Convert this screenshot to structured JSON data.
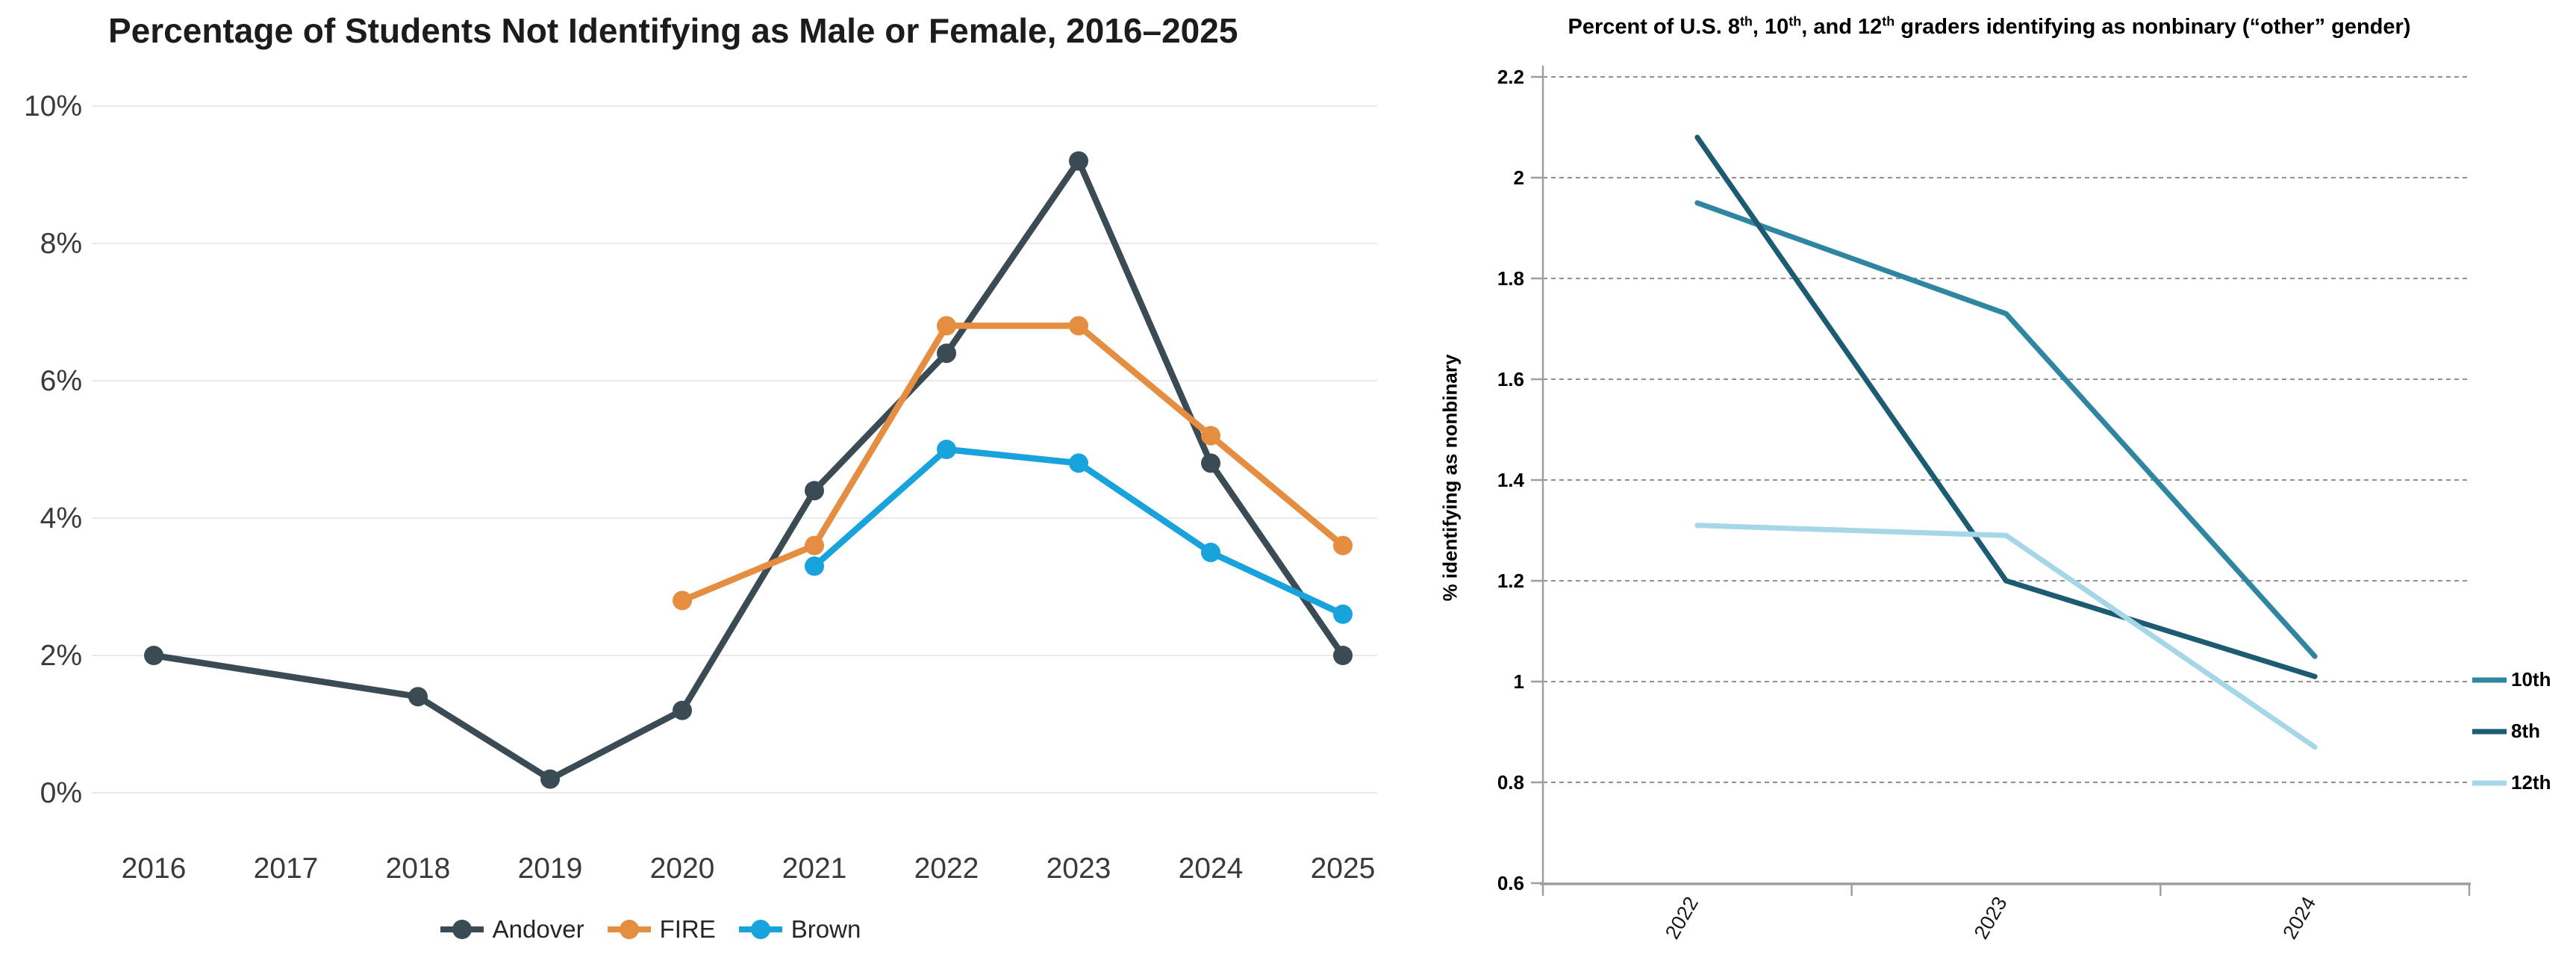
{
  "colors": {
    "left_grid": "#e9e9e9",
    "left_axis_text": "#3a3a3a",
    "left_title_text": "#1c1c1c",
    "right_grid": "#909090",
    "right_axis": "#9e9e9e",
    "right_text": "#000000",
    "andover": "#3b4b54",
    "fire": "#e58d41",
    "brown": "#18a3dd",
    "grade10": "#2e86a1",
    "grade8": "#1c5c72",
    "grade12": "#a6d7e8"
  },
  "right_title_parts": {
    "p1": "Percent of U.S. 8",
    "s1": "th",
    "p2": ", 10",
    "s2": "th",
    "p3": ", and 12",
    "s3": "th",
    "p4": " graders identifying as nonbinary (“other” gender)"
  },
  "chart_data": [
    {
      "type": "line",
      "title": "Percentage of Students Not Identifying as Male or Female, 2016–2025",
      "xlabel": "",
      "ylabel": "",
      "categories": [
        "2016",
        "2017",
        "2018",
        "2019",
        "2020",
        "2021",
        "2022",
        "2023",
        "2024",
        "2025"
      ],
      "series": [
        {
          "name": "Andover",
          "color": "#3b4b54",
          "values": [
            2.0,
            null,
            1.4,
            0.2,
            1.2,
            4.4,
            6.4,
            9.2,
            4.8,
            2.0
          ]
        },
        {
          "name": "FIRE",
          "color": "#e58d41",
          "values": [
            null,
            null,
            null,
            null,
            2.8,
            3.6,
            6.8,
            6.8,
            5.2,
            3.6
          ]
        },
        {
          "name": "Brown",
          "color": "#18a3dd",
          "values": [
            null,
            null,
            null,
            null,
            null,
            3.3,
            5.0,
            4.8,
            3.5,
            2.6
          ]
        }
      ],
      "ylim": [
        0,
        10
      ],
      "ytick_step": 2,
      "ytick_suffix": "%",
      "grid": "solid",
      "markers": true,
      "legend_position": "bottom"
    },
    {
      "type": "line",
      "title": "Percent of U.S. 8th, 10th, and 12th graders identifying as nonbinary (“other” gender)",
      "xlabel": "",
      "ylabel": "% identifying as nonbinary",
      "categories": [
        "2022",
        "2023",
        "2024"
      ],
      "series": [
        {
          "name": "10th",
          "color": "#2e86a1",
          "values": [
            1.95,
            1.73,
            1.05
          ]
        },
        {
          "name": "8th",
          "color": "#1c5c72",
          "values": [
            2.08,
            1.2,
            1.01
          ]
        },
        {
          "name": "12th",
          "color": "#a6d7e8",
          "values": [
            1.31,
            1.29,
            0.87
          ]
        }
      ],
      "ylim": [
        0.6,
        2.2
      ],
      "ytick_step": 0.2,
      "ytick_suffix": "",
      "grid": "dashed",
      "markers": false,
      "legend_position": "right"
    }
  ]
}
